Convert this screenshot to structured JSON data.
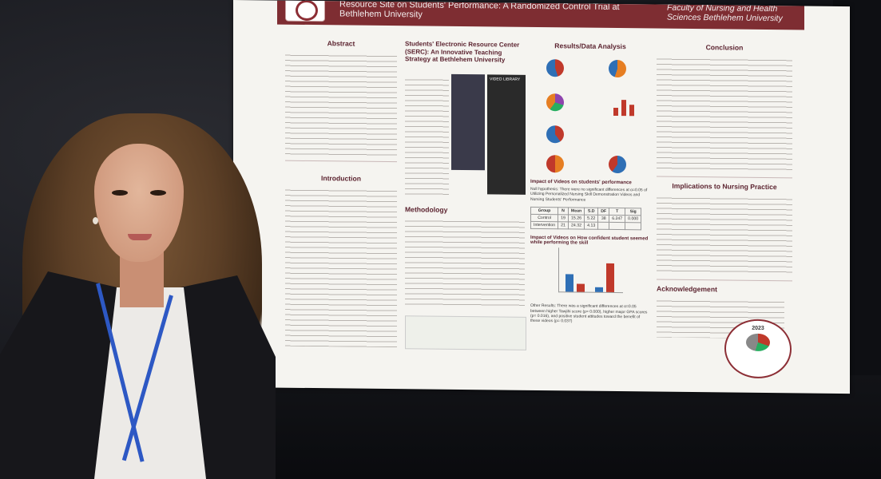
{
  "poster": {
    "header_title": "Resource Site on Students' Performance: A Randomized Control Trial at Bethlehem University",
    "header_faculty": "Faculty of Nursing and Health Sciences Bethlehem University",
    "abstract_title": "Abstract",
    "introduction_title": "Introduction",
    "serc_title": "Students' Electronic Resource Center (SERC): An Innovative Teaching Strategy at Bethlehem University",
    "video_library_label": "VIDEO LIBRARY",
    "methodology_title": "Methodology",
    "results_title": "Results/Data Analysis",
    "impact_title": "Impact of Videos on students' performance",
    "null_hypothesis": "Null hypothesis: There were no significant differences at α=0.05 of Utilizing Personalized Nursing Skill Demonstration Videos and Nursing Students' Performance",
    "table_headers": [
      "Group",
      "N",
      "Mean",
      "S.D",
      "DF",
      "T",
      "Sig"
    ],
    "table_rows": [
      [
        "Control",
        "19",
        "15.26",
        "5.22",
        "38",
        "6.247",
        "0.000"
      ],
      [
        "Intervention",
        "21",
        "24.32",
        "4.13",
        "",
        "",
        ""
      ]
    ],
    "impact_confident_title": "Impact of Videos on How confident student seemed while performing the skill",
    "other_results": "Other Results: There was a significant differences at α=0.05 between higher Tawjihi score (p= 0.000), higher major GPA scores (p= 0.016), and positive student attitudes toward the benefit of these videos (p= 0.037)",
    "conclusion_title": "Conclusion",
    "implications_title": "Implications to Nursing Practice",
    "acknowledgement_title": "Acknowledgement",
    "seal_year": "2023"
  }
}
